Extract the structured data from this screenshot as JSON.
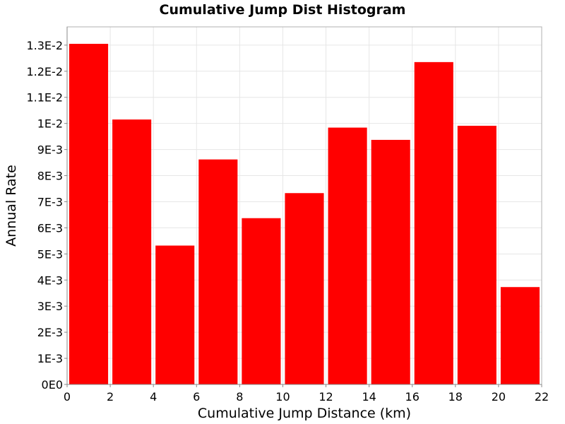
{
  "chart_data": {
    "type": "bar",
    "title": "Cumulative Jump Dist Histogram",
    "xlabel": "Cumulative Jump Distance (km)",
    "ylabel": "Annual Rate",
    "xlim": [
      0,
      22
    ],
    "ylim": [
      0,
      0.0137
    ],
    "x_ticks": [
      "0",
      "2",
      "4",
      "6",
      "8",
      "10",
      "12",
      "14",
      "16",
      "18",
      "20",
      "22"
    ],
    "y_ticks": [
      "0E0",
      "1E-3",
      "2E-3",
      "3E-3",
      "4E-3",
      "5E-3",
      "6E-3",
      "7E-3",
      "8E-3",
      "9E-3",
      "1E-2",
      "1.1E-2",
      "1.2E-2",
      "1.3E-2"
    ],
    "grid": true,
    "bar_color": "#ff0000",
    "bin_width": 2,
    "bins": [
      {
        "x": 1,
        "value": 0.01305
      },
      {
        "x": 3,
        "value": 0.01015
      },
      {
        "x": 5,
        "value": 0.00532
      },
      {
        "x": 7,
        "value": 0.00862
      },
      {
        "x": 9,
        "value": 0.00637
      },
      {
        "x": 11,
        "value": 0.00733
      },
      {
        "x": 13,
        "value": 0.00984
      },
      {
        "x": 15,
        "value": 0.00937
      },
      {
        "x": 17,
        "value": 0.01235
      },
      {
        "x": 19,
        "value": 0.00991
      },
      {
        "x": 21,
        "value": 0.00373
      }
    ]
  }
}
